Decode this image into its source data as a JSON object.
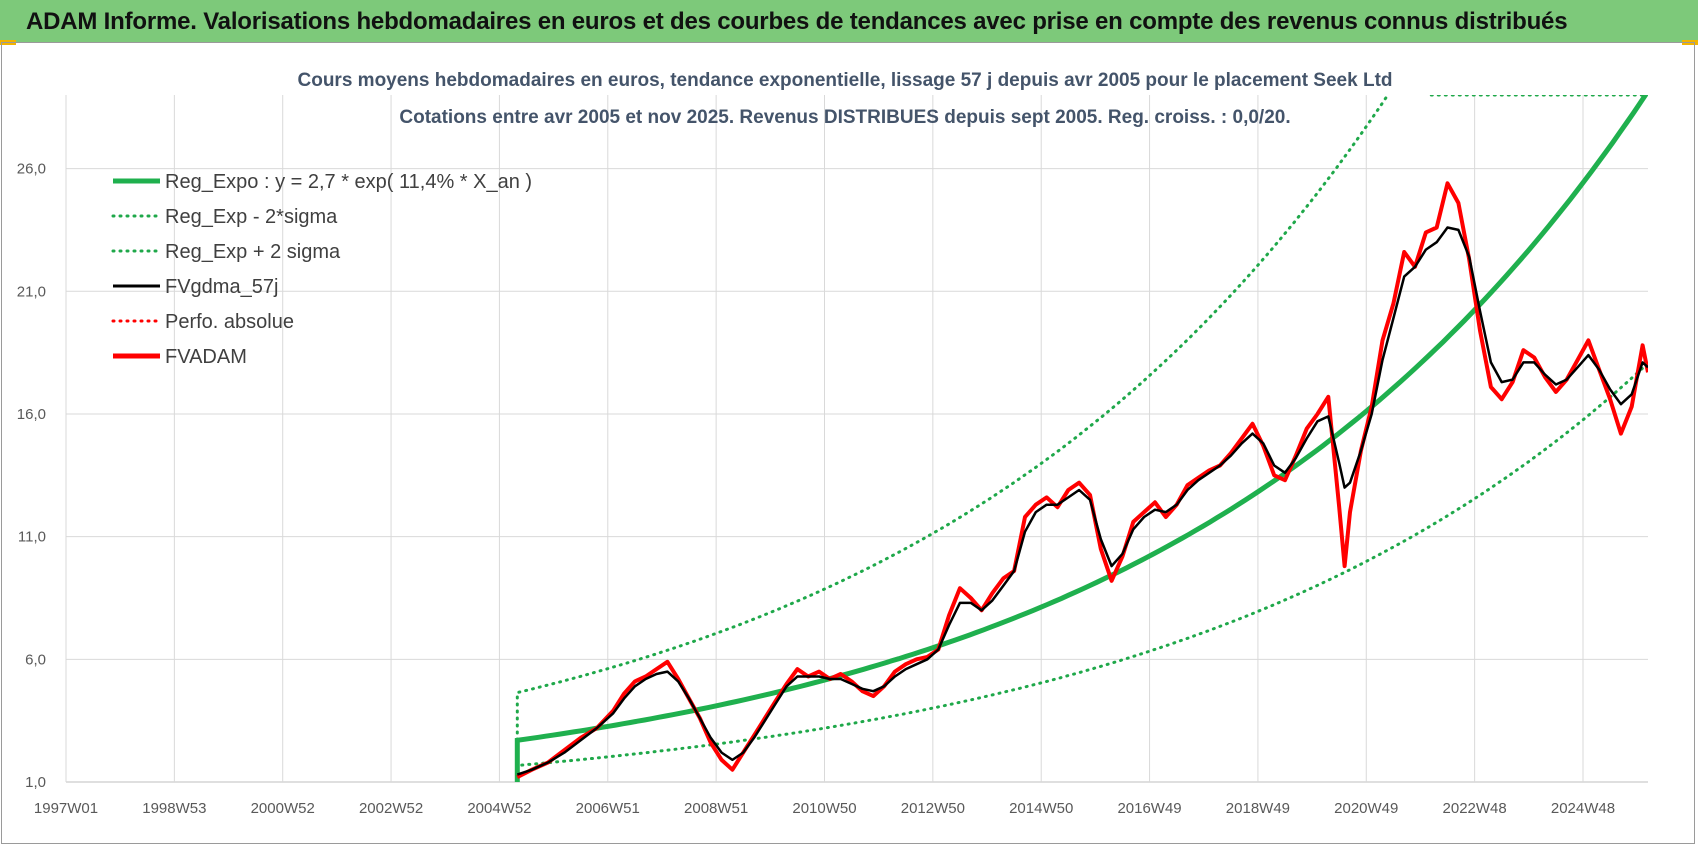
{
  "banner": {
    "title": "ADAM Informe. Valorisations hebdomadaires en euros et des courbes de tendances avec prise en compte des revenus connus distribués"
  },
  "colors": {
    "banner_bg": "#7dc97a",
    "trend_green": "#1fb04e",
    "dotted_green": "#1fa84a",
    "price_red": "#ff0000",
    "smooth_black": "#000000",
    "grid": "#d9d9d9"
  },
  "chart_data": {
    "type": "line",
    "title": "Cours moyens hebdomadaires en euros, tendance exponentielle, lissage 57 j depuis avr 2005 pour le placement Seek Ltd",
    "subtitle": "Cotations entre avr 2005 et nov 2025.  Revenus DISTRIBUES depuis sept 2005.  Reg. croiss. : 0,0/20.",
    "ylim": [
      1,
      29
    ],
    "xlim": [
      1997.0,
      2026.2
    ],
    "y_ticks": [
      "1,0",
      "6,0",
      "11,0",
      "16,0",
      "21,0",
      "26,0"
    ],
    "x_ticks": [
      {
        "label": "1997W01",
        "x": 1997.0
      },
      {
        "label": "1998W53",
        "x": 1999.0
      },
      {
        "label": "2000W52",
        "x": 2001.0
      },
      {
        "label": "2002W52",
        "x": 2003.0
      },
      {
        "label": "2004W52",
        "x": 2005.0
      },
      {
        "label": "2006W51",
        "x": 2007.0
      },
      {
        "label": "2008W51",
        "x": 2009.0
      },
      {
        "label": "2010W50",
        "x": 2011.0
      },
      {
        "label": "2012W50",
        "x": 2013.0
      },
      {
        "label": "2014W50",
        "x": 2015.0
      },
      {
        "label": "2016W49",
        "x": 2017.0
      },
      {
        "label": "2018W49",
        "x": 2019.0
      },
      {
        "label": "2020W49",
        "x": 2021.0
      },
      {
        "label": "2022W48",
        "x": 2023.0
      },
      {
        "label": "2024W48",
        "x": 2025.0
      }
    ],
    "legend": [
      {
        "label": "Reg_Expo : y = 2,7 * exp( 11,4% *  X_an )",
        "color": "#1fb04e",
        "style": "solid-thick"
      },
      {
        "label": "Reg_Exp - 2*sigma",
        "color": "#1fa84a",
        "style": "dotted"
      },
      {
        "label": "Reg_Exp + 2 sigma",
        "color": "#1fa84a",
        "style": "dotted"
      },
      {
        "label": "FVgdma_57j",
        "color": "#000000",
        "style": "solid"
      },
      {
        "label": "Perfo. absolue",
        "color": "#ff0000",
        "style": "dotted"
      },
      {
        "label": "FVADAM",
        "color": "#ff0000",
        "style": "solid-thick"
      }
    ],
    "legend_position": "top-left",
    "trend": {
      "start_x": 2005.33,
      "end_x": 2026.2,
      "a": 2.7,
      "rate": 0.114,
      "lower_factor": 0.62,
      "upper_factor": 1.72
    },
    "series": [
      {
        "name": "FVADAM",
        "points": [
          [
            2005.33,
            1.2
          ],
          [
            2005.6,
            1.5
          ],
          [
            2005.9,
            1.8
          ],
          [
            2006.2,
            2.3
          ],
          [
            2006.5,
            2.8
          ],
          [
            2006.8,
            3.2
          ],
          [
            2007.1,
            3.9
          ],
          [
            2007.3,
            4.6
          ],
          [
            2007.5,
            5.1
          ],
          [
            2007.7,
            5.3
          ],
          [
            2007.9,
            5.6
          ],
          [
            2008.1,
            5.9
          ],
          [
            2008.3,
            5.2
          ],
          [
            2008.5,
            4.4
          ],
          [
            2008.7,
            3.6
          ],
          [
            2008.9,
            2.6
          ],
          [
            2009.1,
            1.9
          ],
          [
            2009.3,
            1.5
          ],
          [
            2009.5,
            2.2
          ],
          [
            2009.7,
            2.9
          ],
          [
            2009.9,
            3.6
          ],
          [
            2010.1,
            4.3
          ],
          [
            2010.3,
            5.0
          ],
          [
            2010.5,
            5.6
          ],
          [
            2010.7,
            5.3
          ],
          [
            2010.9,
            5.5
          ],
          [
            2011.1,
            5.2
          ],
          [
            2011.3,
            5.4
          ],
          [
            2011.5,
            5.1
          ],
          [
            2011.7,
            4.7
          ],
          [
            2011.9,
            4.5
          ],
          [
            2012.1,
            4.9
          ],
          [
            2012.3,
            5.5
          ],
          [
            2012.5,
            5.8
          ],
          [
            2012.7,
            6.0
          ],
          [
            2012.9,
            6.1
          ],
          [
            2013.1,
            6.4
          ],
          [
            2013.3,
            7.8
          ],
          [
            2013.5,
            8.9
          ],
          [
            2013.7,
            8.5
          ],
          [
            2013.9,
            8.0
          ],
          [
            2014.1,
            8.7
          ],
          [
            2014.3,
            9.3
          ],
          [
            2014.5,
            9.6
          ],
          [
            2014.7,
            11.8
          ],
          [
            2014.9,
            12.3
          ],
          [
            2015.1,
            12.6
          ],
          [
            2015.3,
            12.2
          ],
          [
            2015.5,
            12.9
          ],
          [
            2015.7,
            13.2
          ],
          [
            2015.9,
            12.7
          ],
          [
            2016.1,
            10.5
          ],
          [
            2016.3,
            9.2
          ],
          [
            2016.5,
            10.2
          ],
          [
            2016.7,
            11.6
          ],
          [
            2016.9,
            12.0
          ],
          [
            2017.1,
            12.4
          ],
          [
            2017.3,
            11.8
          ],
          [
            2017.5,
            12.3
          ],
          [
            2017.7,
            13.1
          ],
          [
            2017.9,
            13.4
          ],
          [
            2018.1,
            13.7
          ],
          [
            2018.3,
            13.9
          ],
          [
            2018.5,
            14.4
          ],
          [
            2018.7,
            15.0
          ],
          [
            2018.9,
            15.6
          ],
          [
            2019.1,
            14.7
          ],
          [
            2019.3,
            13.5
          ],
          [
            2019.5,
            13.3
          ],
          [
            2019.7,
            14.3
          ],
          [
            2019.9,
            15.4
          ],
          [
            2020.1,
            16.0
          ],
          [
            2020.3,
            16.7
          ],
          [
            2020.5,
            12.2
          ],
          [
            2020.6,
            9.8
          ],
          [
            2020.7,
            12.0
          ],
          [
            2020.9,
            14.5
          ],
          [
            2021.1,
            16.3
          ],
          [
            2021.3,
            19.0
          ],
          [
            2021.5,
            20.5
          ],
          [
            2021.7,
            22.6
          ],
          [
            2021.9,
            22.0
          ],
          [
            2022.1,
            23.4
          ],
          [
            2022.3,
            23.6
          ],
          [
            2022.5,
            25.4
          ],
          [
            2022.7,
            24.6
          ],
          [
            2022.9,
            22.3
          ],
          [
            2023.1,
            19.4
          ],
          [
            2023.3,
            17.1
          ],
          [
            2023.5,
            16.6
          ],
          [
            2023.7,
            17.3
          ],
          [
            2023.9,
            18.6
          ],
          [
            2024.1,
            18.3
          ],
          [
            2024.3,
            17.5
          ],
          [
            2024.5,
            16.9
          ],
          [
            2024.7,
            17.4
          ],
          [
            2024.9,
            18.2
          ],
          [
            2025.1,
            19.0
          ],
          [
            2025.3,
            17.8
          ],
          [
            2025.5,
            16.6
          ],
          [
            2025.7,
            15.2
          ],
          [
            2025.9,
            16.3
          ],
          [
            2026.1,
            18.8
          ],
          [
            2026.2,
            17.7
          ]
        ]
      },
      {
        "name": "FVgdma_57j",
        "points": [
          [
            2005.33,
            1.3
          ],
          [
            2005.6,
            1.5
          ],
          [
            2005.9,
            1.8
          ],
          [
            2006.2,
            2.2
          ],
          [
            2006.5,
            2.7
          ],
          [
            2006.8,
            3.2
          ],
          [
            2007.1,
            3.8
          ],
          [
            2007.3,
            4.4
          ],
          [
            2007.5,
            4.9
          ],
          [
            2007.7,
            5.2
          ],
          [
            2007.9,
            5.4
          ],
          [
            2008.1,
            5.5
          ],
          [
            2008.3,
            5.1
          ],
          [
            2008.5,
            4.4
          ],
          [
            2008.7,
            3.6
          ],
          [
            2008.9,
            2.8
          ],
          [
            2009.1,
            2.2
          ],
          [
            2009.3,
            1.9
          ],
          [
            2009.5,
            2.2
          ],
          [
            2009.7,
            2.8
          ],
          [
            2009.9,
            3.5
          ],
          [
            2010.1,
            4.2
          ],
          [
            2010.3,
            4.9
          ],
          [
            2010.5,
            5.3
          ],
          [
            2010.7,
            5.3
          ],
          [
            2010.9,
            5.3
          ],
          [
            2011.1,
            5.2
          ],
          [
            2011.3,
            5.2
          ],
          [
            2011.5,
            5.0
          ],
          [
            2011.7,
            4.8
          ],
          [
            2011.9,
            4.7
          ],
          [
            2012.1,
            4.9
          ],
          [
            2012.3,
            5.3
          ],
          [
            2012.5,
            5.6
          ],
          [
            2012.7,
            5.8
          ],
          [
            2012.9,
            6.0
          ],
          [
            2013.1,
            6.4
          ],
          [
            2013.3,
            7.4
          ],
          [
            2013.5,
            8.3
          ],
          [
            2013.7,
            8.3
          ],
          [
            2013.9,
            8.0
          ],
          [
            2014.1,
            8.4
          ],
          [
            2014.3,
            9.0
          ],
          [
            2014.5,
            9.6
          ],
          [
            2014.7,
            11.2
          ],
          [
            2014.9,
            12.0
          ],
          [
            2015.1,
            12.3
          ],
          [
            2015.3,
            12.3
          ],
          [
            2015.5,
            12.6
          ],
          [
            2015.7,
            12.9
          ],
          [
            2015.9,
            12.5
          ],
          [
            2016.1,
            10.9
          ],
          [
            2016.3,
            9.8
          ],
          [
            2016.5,
            10.3
          ],
          [
            2016.7,
            11.3
          ],
          [
            2016.9,
            11.8
          ],
          [
            2017.1,
            12.1
          ],
          [
            2017.3,
            12.0
          ],
          [
            2017.5,
            12.3
          ],
          [
            2017.7,
            12.9
          ],
          [
            2017.9,
            13.3
          ],
          [
            2018.1,
            13.6
          ],
          [
            2018.3,
            13.9
          ],
          [
            2018.5,
            14.3
          ],
          [
            2018.7,
            14.8
          ],
          [
            2018.9,
            15.2
          ],
          [
            2019.1,
            14.8
          ],
          [
            2019.3,
            13.9
          ],
          [
            2019.5,
            13.6
          ],
          [
            2019.7,
            14.2
          ],
          [
            2019.9,
            15.0
          ],
          [
            2020.1,
            15.7
          ],
          [
            2020.3,
            15.9
          ],
          [
            2020.5,
            14.0
          ],
          [
            2020.6,
            13.0
          ],
          [
            2020.7,
            13.2
          ],
          [
            2020.9,
            14.5
          ],
          [
            2021.1,
            16.0
          ],
          [
            2021.3,
            18.2
          ],
          [
            2021.5,
            19.9
          ],
          [
            2021.7,
            21.6
          ],
          [
            2021.9,
            22.0
          ],
          [
            2022.1,
            22.7
          ],
          [
            2022.3,
            23.0
          ],
          [
            2022.5,
            23.6
          ],
          [
            2022.7,
            23.5
          ],
          [
            2022.9,
            22.4
          ],
          [
            2023.1,
            20.2
          ],
          [
            2023.3,
            18.1
          ],
          [
            2023.5,
            17.3
          ],
          [
            2023.7,
            17.4
          ],
          [
            2023.9,
            18.1
          ],
          [
            2024.1,
            18.1
          ],
          [
            2024.3,
            17.6
          ],
          [
            2024.5,
            17.2
          ],
          [
            2024.7,
            17.4
          ],
          [
            2024.9,
            17.9
          ],
          [
            2025.1,
            18.4
          ],
          [
            2025.3,
            17.8
          ],
          [
            2025.5,
            17.0
          ],
          [
            2025.7,
            16.4
          ],
          [
            2025.9,
            16.8
          ],
          [
            2026.1,
            18.1
          ],
          [
            2026.2,
            17.9
          ]
        ]
      }
    ]
  }
}
